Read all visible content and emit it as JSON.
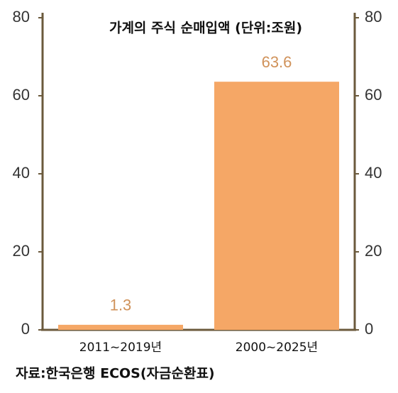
{
  "chart_data": {
    "type": "bar",
    "title": "가계의 주식 순매입액 (단위:조원)",
    "categories": [
      "2011~2019년",
      "2000~2025년"
    ],
    "values": [
      1.3,
      63.6
    ],
    "color": "#f5a766",
    "ylim": [
      0,
      80
    ],
    "yticks": [
      0,
      20,
      40,
      60,
      80
    ],
    "grid": false,
    "source": "자료:한국은행 ECOS(자금순환표)"
  }
}
